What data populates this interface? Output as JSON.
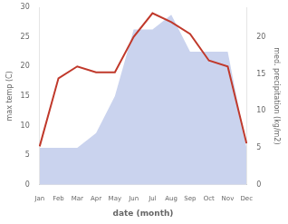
{
  "chart_data": {
    "type": "line",
    "categories": [
      "Jan",
      "Feb",
      "Mar",
      "Apr",
      "May",
      "Jun",
      "Jul",
      "Aug",
      "Sep",
      "Oct",
      "Nov",
      "Dec"
    ],
    "series": [
      {
        "type": "area",
        "axis": "y2",
        "color": "#b8c4e8",
        "values": [
          5.0,
          5.0,
          5.0,
          7.0,
          12.0,
          21.0,
          21.0,
          23.0,
          18.0,
          18.0,
          18.0,
          5.0
        ]
      },
      {
        "type": "line",
        "color": "#c0392b",
        "values": [
          6.5,
          18.0,
          20.0,
          19.0,
          19.0,
          25.0,
          29.0,
          27.5,
          25.5,
          21.0,
          20.0,
          7.0
        ]
      }
    ],
    "xlabel": "date (month)",
    "ylabel": "max temp (C)",
    "y2label": "med. precipitation (kg/m2)",
    "ylim": [
      0,
      30
    ],
    "yticks": [
      0,
      5,
      10,
      15,
      20,
      25,
      30
    ],
    "y2lim": [
      0,
      24
    ],
    "y2ticks": [
      0,
      5,
      10,
      15,
      20
    ],
    "grid": false
  }
}
